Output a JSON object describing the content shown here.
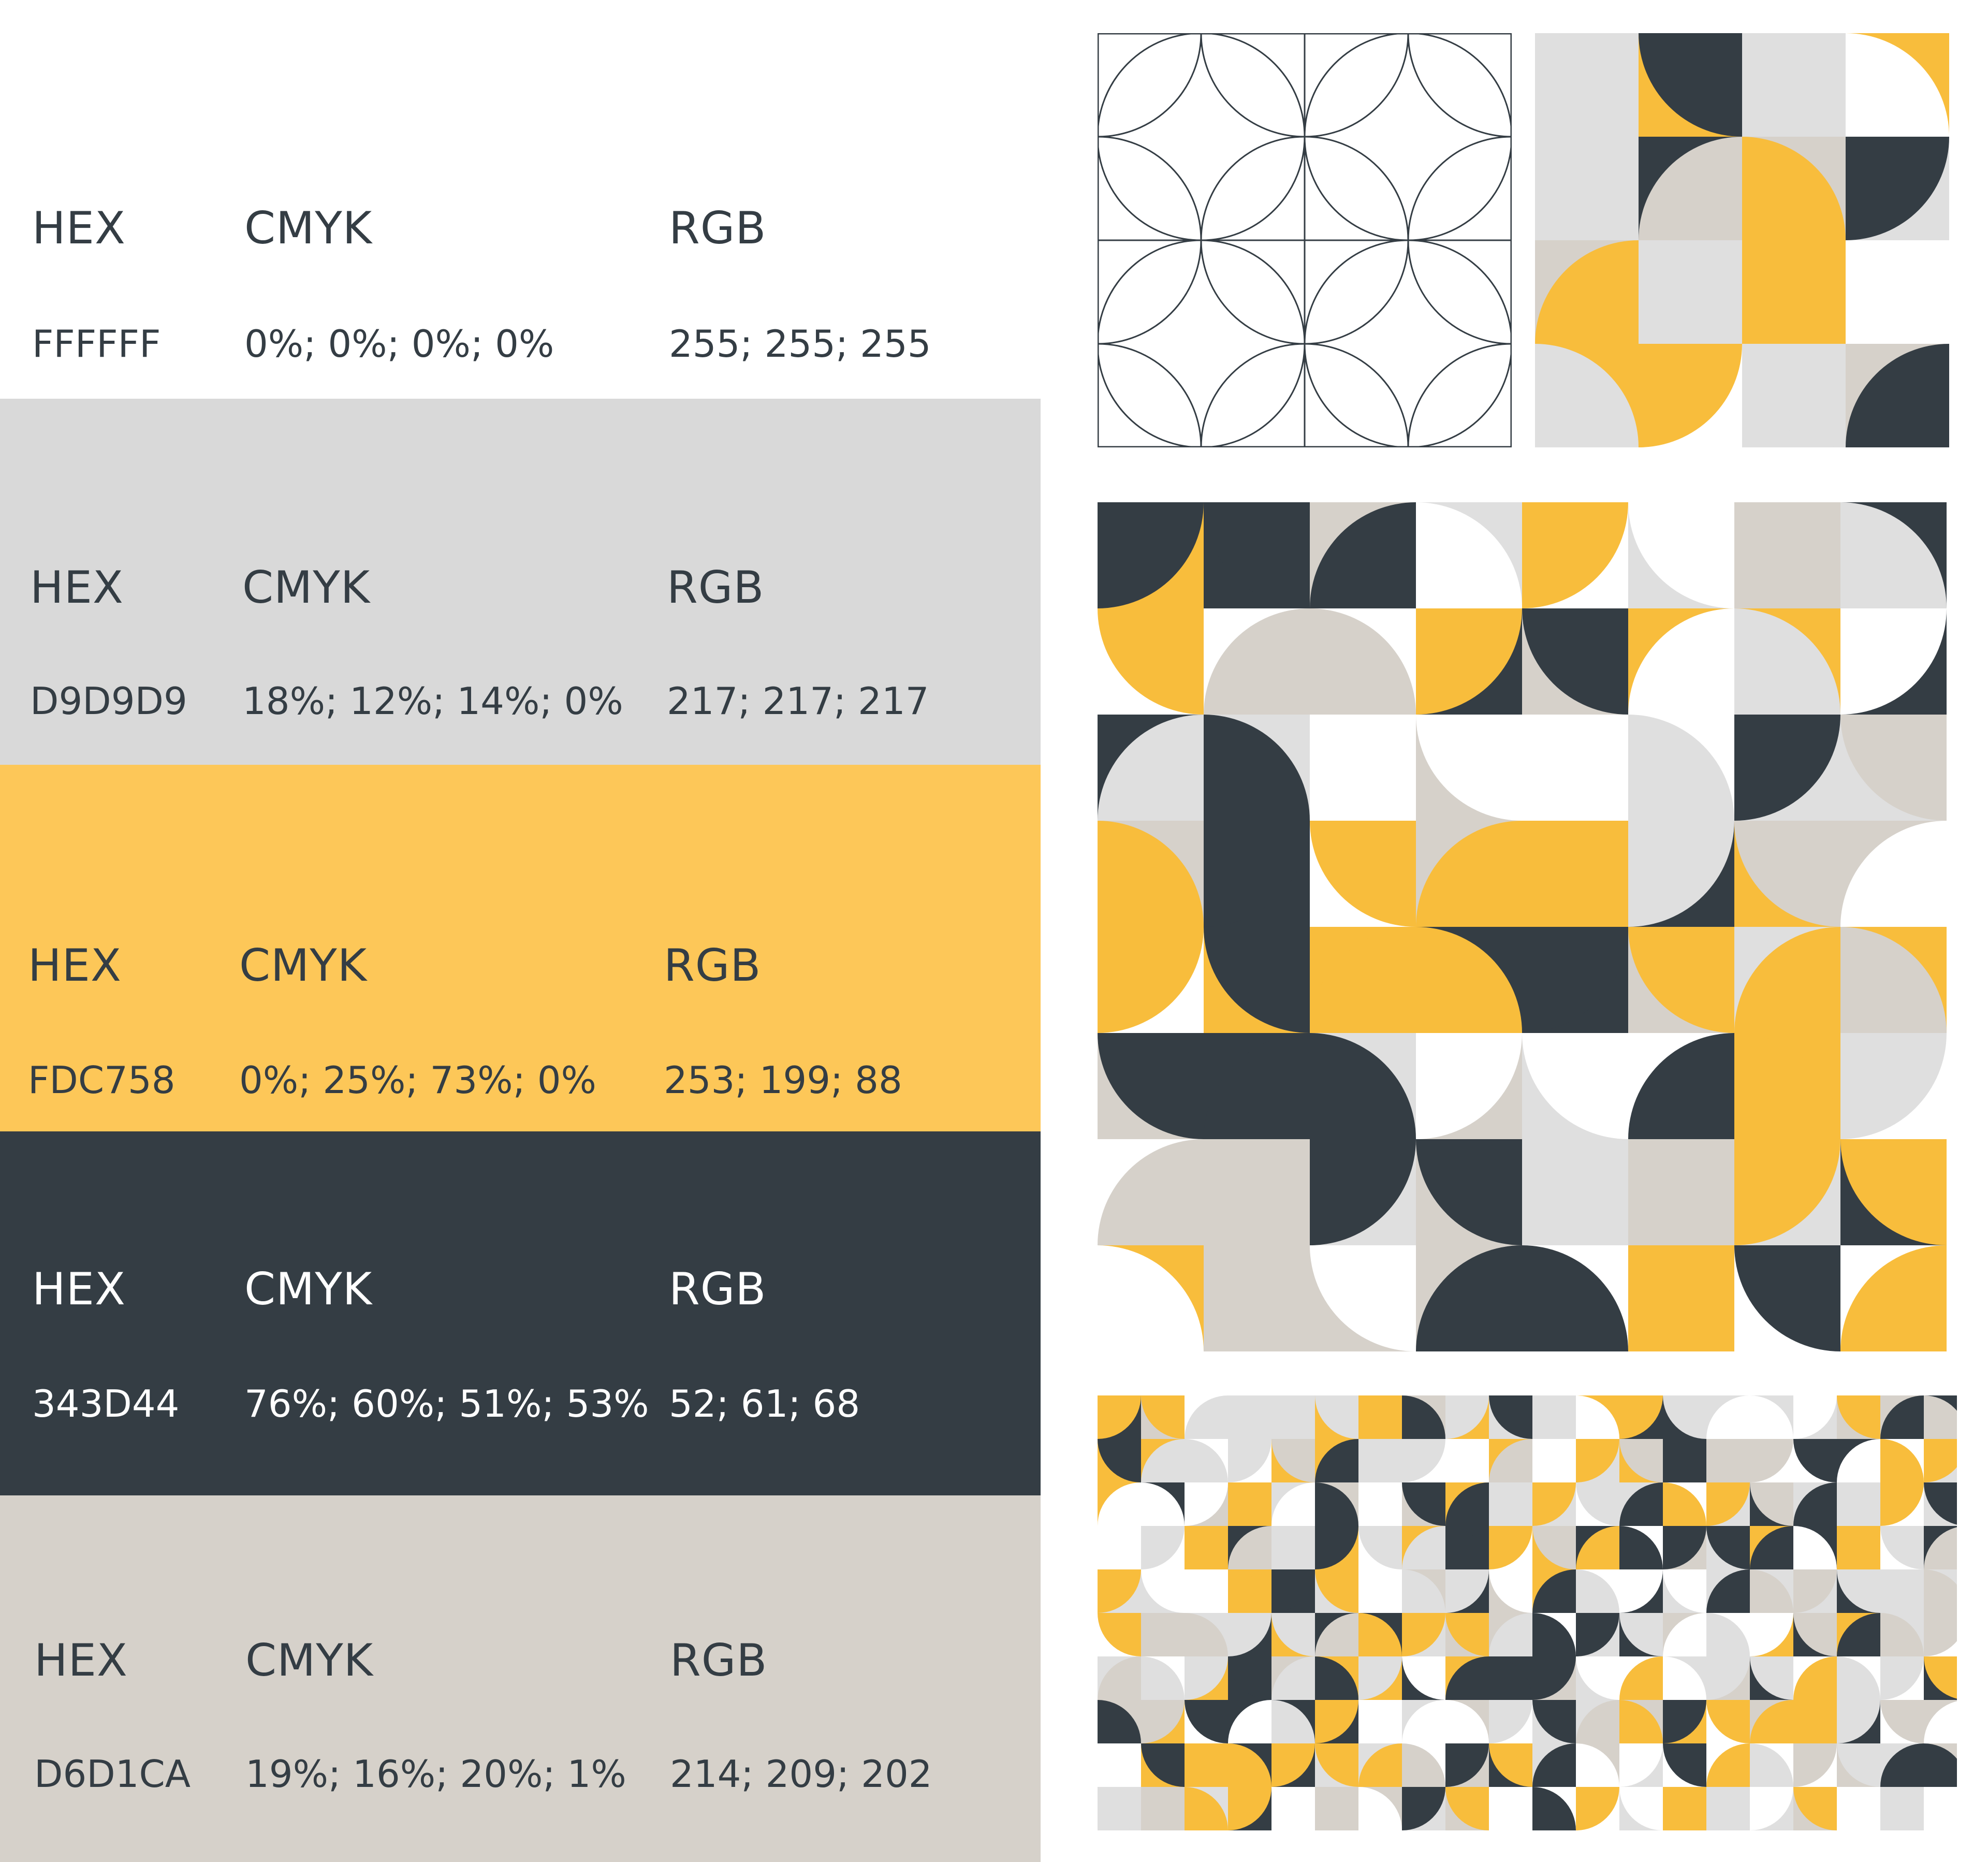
{
  "colors": {
    "white": "#FFFFFF",
    "light_gray": "#D9D9D9",
    "yellow": "#FDC758",
    "dark": "#343D44",
    "warm_gray": "#D6D1CA",
    "pattern_yellow": "#F8BD3C",
    "pattern_light": "#DFDFDF"
  },
  "swatches": [
    {
      "hex_label": "HEX",
      "cmyk_label": "CMYK",
      "rgb_label": "RGB",
      "hex": "FFFFFF",
      "cmyk": "0%; 0%; 0%; 0%",
      "rgb": "255; 255; 255"
    },
    {
      "hex_label": "HEX",
      "cmyk_label": "CMYK",
      "rgb_label": "RGB",
      "hex": "D9D9D9",
      "cmyk": "18%; 12%; 14%; 0%",
      "rgb": "217; 217; 217"
    },
    {
      "hex_label": "HEX",
      "cmyk_label": "CMYK",
      "rgb_label": "RGB",
      "hex": "FDC758",
      "cmyk": "0%; 25%; 73%; 0%",
      "rgb": "253; 199; 88"
    },
    {
      "hex_label": "HEX",
      "cmyk_label": "CMYK",
      "rgb_label": "RGB",
      "hex": "343D44",
      "cmyk": "76%; 60%; 51%; 53%",
      "rgb": "52; 61; 68"
    },
    {
      "hex_label": "HEX",
      "cmyk_label": "CMYK",
      "rgb_label": "RGB",
      "hex": "D6D1CA",
      "cmyk": "19%; 16%; 20%; 1%",
      "rgb": "214; 209; 202"
    }
  ],
  "patterns": [
    {
      "name": "pattern-construction-grid",
      "style": "outline"
    },
    {
      "name": "pattern-tile-colored",
      "style": "filled"
    },
    {
      "name": "pattern-large-repeat",
      "style": "filled"
    },
    {
      "name": "pattern-small-repeat",
      "style": "filled"
    }
  ]
}
